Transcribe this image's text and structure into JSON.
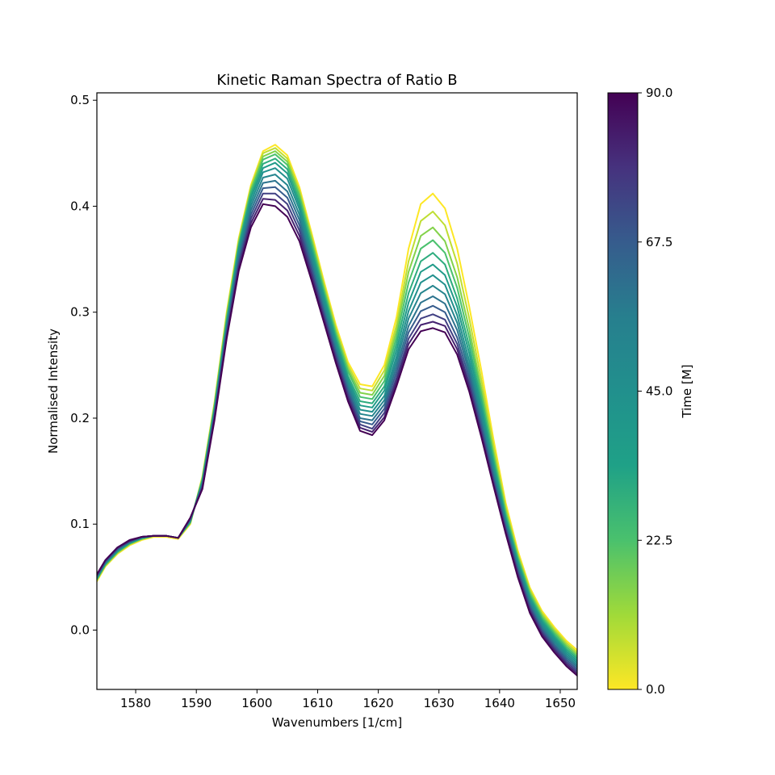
{
  "chart_data": {
    "type": "line",
    "title": "Kinetic Raman Spectra of Ratio B",
    "xlabel": "Wavenumbers [1/cm]",
    "ylabel": "Normalised Intensity",
    "xlim": [
      1573.6,
      1652.8
    ],
    "ylim": [
      -0.056,
      0.507
    ],
    "xticks": [
      1580,
      1590,
      1600,
      1610,
      1620,
      1630,
      1640,
      1650
    ],
    "yticks": [
      0.0,
      0.1,
      0.2,
      0.3,
      0.4,
      0.5
    ],
    "grid": false,
    "colormap": "viridis_r",
    "colorbar": {
      "label": "Time [M]",
      "range": [
        0.0,
        90.0
      ],
      "ticks": [
        "0.0",
        "22.5",
        "45.0",
        "67.5",
        "90.0"
      ]
    },
    "x": [
      1573,
      1575,
      1577,
      1579,
      1581,
      1583,
      1585,
      1587,
      1589,
      1591,
      1593,
      1595,
      1597,
      1599,
      1601,
      1603,
      1605,
      1607,
      1609,
      1611,
      1613,
      1615,
      1617,
      1619,
      1621,
      1623,
      1625,
      1627,
      1629,
      1631,
      1633,
      1635,
      1637,
      1639,
      1641,
      1643,
      1645,
      1647,
      1649,
      1651,
      1653
    ],
    "series": [
      {
        "time": 0,
        "values": [
          0.04,
          0.06,
          0.072,
          0.08,
          0.085,
          0.088,
          0.088,
          0.086,
          0.1,
          0.145,
          0.215,
          0.3,
          0.37,
          0.42,
          0.452,
          0.458,
          0.448,
          0.418,
          0.375,
          0.33,
          0.288,
          0.253,
          0.232,
          0.23,
          0.25,
          0.295,
          0.36,
          0.402,
          0.412,
          0.398,
          0.36,
          0.305,
          0.245,
          0.18,
          0.12,
          0.075,
          0.04,
          0.018,
          0.003,
          -0.01,
          -0.02
        ]
      },
      {
        "time": 7.5,
        "values": [
          0.041,
          0.061,
          0.073,
          0.081,
          0.086,
          0.089,
          0.089,
          0.087,
          0.101,
          0.144,
          0.214,
          0.298,
          0.368,
          0.418,
          0.45,
          0.455,
          0.445,
          0.415,
          0.372,
          0.327,
          0.285,
          0.25,
          0.228,
          0.226,
          0.245,
          0.288,
          0.348,
          0.386,
          0.395,
          0.382,
          0.346,
          0.294,
          0.236,
          0.174,
          0.116,
          0.072,
          0.038,
          0.016,
          0.001,
          -0.012,
          -0.022
        ]
      },
      {
        "time": 15,
        "values": [
          0.042,
          0.061,
          0.073,
          0.081,
          0.086,
          0.089,
          0.089,
          0.087,
          0.101,
          0.143,
          0.212,
          0.296,
          0.366,
          0.416,
          0.447,
          0.452,
          0.442,
          0.412,
          0.369,
          0.324,
          0.282,
          0.247,
          0.224,
          0.222,
          0.24,
          0.282,
          0.338,
          0.372,
          0.38,
          0.367,
          0.333,
          0.284,
          0.228,
          0.168,
          0.113,
          0.07,
          0.036,
          0.014,
          -0.001,
          -0.014,
          -0.024
        ]
      },
      {
        "time": 22.5,
        "values": [
          0.042,
          0.062,
          0.074,
          0.082,
          0.086,
          0.089,
          0.089,
          0.087,
          0.102,
          0.142,
          0.211,
          0.293,
          0.364,
          0.414,
          0.444,
          0.449,
          0.439,
          0.409,
          0.366,
          0.321,
          0.279,
          0.244,
          0.22,
          0.218,
          0.235,
          0.276,
          0.328,
          0.36,
          0.368,
          0.356,
          0.323,
          0.276,
          0.222,
          0.164,
          0.11,
          0.068,
          0.034,
          0.012,
          -0.003,
          -0.016,
          -0.026
        ]
      },
      {
        "time": 30,
        "values": [
          0.043,
          0.062,
          0.074,
          0.082,
          0.087,
          0.089,
          0.089,
          0.087,
          0.102,
          0.141,
          0.209,
          0.291,
          0.362,
          0.411,
          0.44,
          0.445,
          0.435,
          0.405,
          0.362,
          0.318,
          0.276,
          0.24,
          0.216,
          0.214,
          0.23,
          0.27,
          0.318,
          0.348,
          0.356,
          0.345,
          0.313,
          0.268,
          0.216,
          0.16,
          0.107,
          0.066,
          0.032,
          0.01,
          -0.005,
          -0.018,
          -0.028
        ]
      },
      {
        "time": 37.5,
        "values": [
          0.043,
          0.063,
          0.075,
          0.082,
          0.087,
          0.089,
          0.089,
          0.087,
          0.103,
          0.14,
          0.208,
          0.289,
          0.36,
          0.408,
          0.436,
          0.441,
          0.431,
          0.401,
          0.358,
          0.315,
          0.273,
          0.237,
          0.212,
          0.21,
          0.226,
          0.264,
          0.309,
          0.338,
          0.345,
          0.335,
          0.305,
          0.261,
          0.21,
          0.156,
          0.105,
          0.064,
          0.03,
          0.008,
          -0.007,
          -0.02,
          -0.03
        ]
      },
      {
        "time": 45,
        "values": [
          0.044,
          0.063,
          0.075,
          0.083,
          0.087,
          0.089,
          0.089,
          0.087,
          0.103,
          0.139,
          0.206,
          0.287,
          0.357,
          0.404,
          0.432,
          0.436,
          0.426,
          0.397,
          0.354,
          0.311,
          0.27,
          0.234,
          0.208,
          0.206,
          0.221,
          0.258,
          0.301,
          0.328,
          0.335,
          0.326,
          0.297,
          0.254,
          0.205,
          0.152,
          0.103,
          0.062,
          0.028,
          0.006,
          -0.009,
          -0.022,
          -0.032
        ]
      },
      {
        "time": 52.5,
        "values": [
          0.044,
          0.064,
          0.076,
          0.083,
          0.087,
          0.089,
          0.089,
          0.087,
          0.104,
          0.138,
          0.205,
          0.285,
          0.354,
          0.4,
          0.427,
          0.43,
          0.42,
          0.392,
          0.35,
          0.307,
          0.267,
          0.231,
          0.204,
          0.202,
          0.217,
          0.253,
          0.294,
          0.318,
          0.325,
          0.317,
          0.29,
          0.248,
          0.2,
          0.149,
          0.101,
          0.06,
          0.026,
          0.004,
          -0.011,
          -0.024,
          -0.034
        ]
      },
      {
        "time": 60,
        "values": [
          0.045,
          0.064,
          0.076,
          0.083,
          0.088,
          0.089,
          0.089,
          0.087,
          0.104,
          0.137,
          0.204,
          0.283,
          0.351,
          0.396,
          0.422,
          0.424,
          0.414,
          0.387,
          0.346,
          0.303,
          0.264,
          0.228,
          0.2,
          0.198,
          0.213,
          0.248,
          0.287,
          0.309,
          0.315,
          0.308,
          0.283,
          0.243,
          0.196,
          0.146,
          0.099,
          0.058,
          0.024,
          0.002,
          -0.013,
          -0.026,
          -0.036
        ]
      },
      {
        "time": 67.5,
        "values": [
          0.045,
          0.065,
          0.077,
          0.084,
          0.088,
          0.089,
          0.089,
          0.087,
          0.105,
          0.136,
          0.202,
          0.281,
          0.348,
          0.392,
          0.417,
          0.418,
          0.408,
          0.382,
          0.342,
          0.3,
          0.261,
          0.225,
          0.197,
          0.194,
          0.209,
          0.243,
          0.281,
          0.301,
          0.306,
          0.3,
          0.276,
          0.238,
          0.192,
          0.143,
          0.097,
          0.056,
          0.022,
          0.0,
          -0.015,
          -0.028,
          -0.038
        ]
      },
      {
        "time": 75,
        "values": [
          0.046,
          0.065,
          0.077,
          0.084,
          0.088,
          0.089,
          0.089,
          0.087,
          0.105,
          0.135,
          0.201,
          0.279,
          0.345,
          0.388,
          0.412,
          0.412,
          0.402,
          0.377,
          0.338,
          0.297,
          0.258,
          0.222,
          0.194,
          0.19,
          0.205,
          0.238,
          0.275,
          0.294,
          0.298,
          0.293,
          0.27,
          0.233,
          0.188,
          0.14,
          0.095,
          0.054,
          0.02,
          -0.002,
          -0.017,
          -0.03,
          -0.04
        ]
      },
      {
        "time": 82.5,
        "values": [
          0.046,
          0.066,
          0.078,
          0.084,
          0.088,
          0.089,
          0.089,
          0.087,
          0.106,
          0.134,
          0.2,
          0.277,
          0.342,
          0.384,
          0.407,
          0.406,
          0.396,
          0.372,
          0.334,
          0.294,
          0.255,
          0.219,
          0.191,
          0.187,
          0.201,
          0.234,
          0.27,
          0.288,
          0.291,
          0.287,
          0.265,
          0.229,
          0.185,
          0.138,
          0.093,
          0.052,
          0.018,
          -0.004,
          -0.019,
          -0.032,
          -0.042
        ]
      },
      {
        "time": 90,
        "values": [
          0.047,
          0.066,
          0.078,
          0.085,
          0.088,
          0.089,
          0.089,
          0.087,
          0.106,
          0.133,
          0.198,
          0.275,
          0.339,
          0.38,
          0.402,
          0.4,
          0.39,
          0.367,
          0.33,
          0.291,
          0.252,
          0.216,
          0.188,
          0.184,
          0.198,
          0.23,
          0.265,
          0.282,
          0.285,
          0.281,
          0.26,
          0.225,
          0.182,
          0.136,
          0.091,
          0.05,
          0.016,
          -0.006,
          -0.021,
          -0.034,
          -0.044
        ]
      }
    ]
  }
}
